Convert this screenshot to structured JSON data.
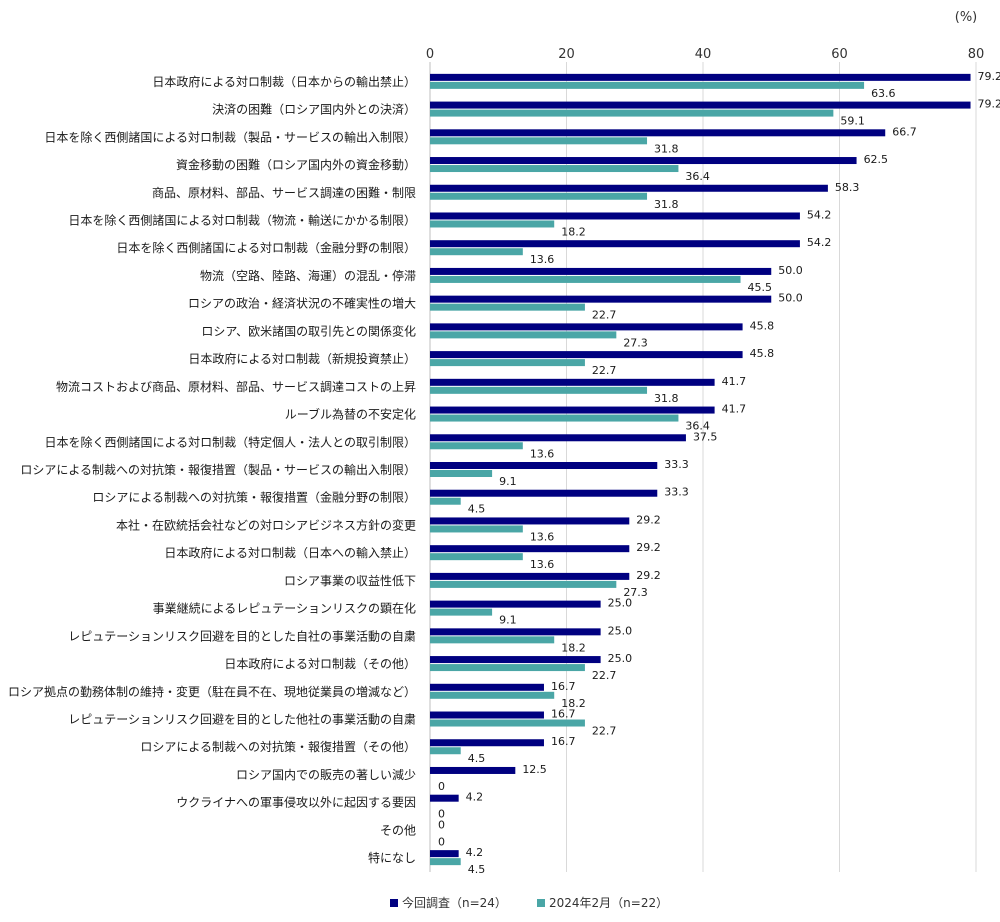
{
  "chart_data": {
    "type": "bar",
    "orientation": "horizontal",
    "unit": "(%)",
    "xlim": [
      0,
      80
    ],
    "xticks": [
      0,
      20,
      40,
      60,
      80
    ],
    "grid": true,
    "legend_position": "bottom",
    "categories": [
      "日本政府による対ロ制裁（日本からの輸出禁止）",
      "決済の困難（ロシア国内外との決済）",
      "日本を除く西側諸国による対ロ制裁（製品・サービスの輸出入制限）",
      "資金移動の困難（ロシア国内外の資金移動）",
      "商品、原材料、部品、サービス調達の困難・制限",
      "日本を除く西側諸国による対ロ制裁（物流・輸送にかかる制限）",
      "日本を除く西側諸国による対ロ制裁（金融分野の制限）",
      "物流（空路、陸路、海運）の混乱・停滞",
      "ロシアの政治・経済状況の不確実性の増大",
      "ロシア、欧米諸国の取引先との関係変化",
      "日本政府による対ロ制裁（新規投資禁止）",
      "物流コストおよび商品、原材料、部品、サービス調達コストの上昇",
      "ルーブル為替の不安定化",
      "日本を除く西側諸国による対ロ制裁（特定個人・法人との取引制限）",
      "ロシアによる制裁への対抗策・報復措置（製品・サービスの輸出入制限）",
      "ロシアによる制裁への対抗策・報復措置（金融分野の制限）",
      "本社・在欧統括会社などの対ロシアビジネス方針の変更",
      "日本政府による対ロ制裁（日本への輸入禁止）",
      "ロシア事業の収益性低下",
      "事業継続によるレピュテーションリスクの顕在化",
      "レピュテーションリスク回避を目的とした自社の事業活動の自粛",
      "日本政府による対ロ制裁（その他）",
      "ロシア拠点の勤務体制の維持・変更（駐在員不在、現地従業員の増減など）",
      "レピュテーションリスク回避を目的とした他社の事業活動の自粛",
      "ロシアによる制裁への対抗策・報復措置（その他）",
      "ロシア国内での販売の著しい減少",
      "ウクライナへの軍事侵攻以外に起因する要因",
      "その他",
      "特になし"
    ],
    "series": [
      {
        "name": "今回調査（n=24）",
        "color": "#000080",
        "values": [
          79.2,
          79.2,
          66.7,
          62.5,
          58.3,
          54.2,
          54.2,
          50.0,
          50.0,
          45.8,
          45.8,
          41.7,
          41.7,
          37.5,
          33.3,
          33.3,
          29.2,
          29.2,
          29.2,
          25.0,
          25.0,
          25.0,
          16.7,
          16.7,
          16.7,
          12.5,
          4.2,
          0,
          4.2
        ],
        "labels": [
          "79.2",
          "79.2",
          "66.7",
          "62.5",
          "58.3",
          "54.2",
          "54.2",
          "50.0",
          "50.0",
          "45.8",
          "45.8",
          "41.7",
          "41.7",
          "37.5",
          "33.3",
          "33.3",
          "29.2",
          "29.2",
          "29.2",
          "25.0",
          "25.0",
          "25.0",
          "16.7",
          "16.7",
          "16.7",
          "12.5",
          "4.2",
          "0",
          "4.2"
        ]
      },
      {
        "name": "2024年2月（n=22）",
        "color": "#4aa6a6",
        "values": [
          63.6,
          59.1,
          31.8,
          36.4,
          31.8,
          18.2,
          13.6,
          45.5,
          22.7,
          27.3,
          22.7,
          31.8,
          36.4,
          13.6,
          9.1,
          4.5,
          13.6,
          13.6,
          27.3,
          9.1,
          18.2,
          22.7,
          18.2,
          22.7,
          4.5,
          0,
          0,
          0,
          4.5
        ],
        "labels": [
          "63.6",
          "59.1",
          "31.8",
          "36.4",
          "31.8",
          "18.2",
          "13.6",
          "45.5",
          "22.7",
          "27.3",
          "22.7",
          "31.8",
          "36.4",
          "13.6",
          "9.1",
          "4.5",
          "13.6",
          "13.6",
          "27.3",
          "9.1",
          "18.2",
          "22.7",
          "18.2",
          "22.7",
          "4.5",
          "0",
          "0",
          "0",
          "4.5"
        ]
      }
    ]
  }
}
